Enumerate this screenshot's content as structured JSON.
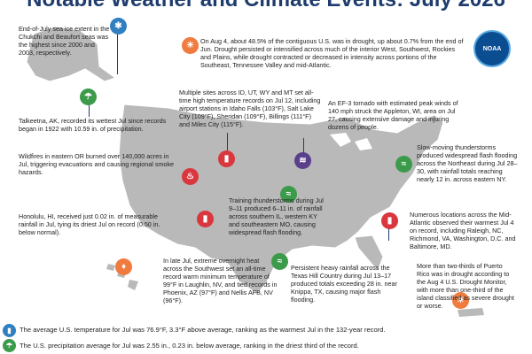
{
  "title": "Notable Weather and Climate Events: July 2026",
  "logo_text": "NOAA",
  "colors": {
    "title": "#1f3c6e",
    "map": "#b9b9b9",
    "blue": "#2f7fc1",
    "green": "#3c9b4a",
    "red": "#d9363e",
    "orange": "#f07b3f",
    "purple": "#5a3f8a"
  },
  "events": {
    "sea_ice": "End-of-July sea ice extent in the Chukchi and Beaufort seas was the highest since 2000 and 2003, respectively.",
    "drought": "On Aug 4, about 48.5% of the contiguous U.S. was in drought, up about 0.7% from the end of Jun. Drought persisted or intensified across much of the interior West, Southwest, Rockies and Plains, while drought contracted or decreased in intensity across portions of the Southeast, Tennessee Valley and mid-Atlantic.",
    "talkeetna": "Talkeetna, AK, recorded its wettest Jul since records began in 1922 with 10.59 in. of precipitation.",
    "mountain_west": "Multiple sites across ID, UT, WY and MT set all-time high temperature records on Jul 12, including airport stations in Idaho Falls (103°F), Salt Lake City (109°F), Sheridan (109°F), Billings (111°F) and Miles City (115°F).",
    "tornado": "An EF-3 tornado with estimated peak winds of 140 mph struck the Appleton, WI, area on Jul 27, causing extensive damage and injuring dozens of people.",
    "wildfire": "Wildfires in eastern OR burned over 140,000 acres in Jul, triggering evacuations and causing regional smoke hazards.",
    "training_storms": "Training thunderstorms during Jul 9–11 produced 6–11 in. of rainfall across southern IL, western KY and southeastern MO, causing widespread flash flooding.",
    "northeast_flood": "Slow-moving thunderstorms produced widespread flash flooding across the Northeast during Jul 28–30, with rainfall totals reaching nearly 12 in. across eastern NY.",
    "honolulu": "Honolulu, HI, received just 0.02 in. of measurable rainfall in Jul, tying its driest Jul on record (0.50 in. below normal).",
    "southwest_heat": "In late Jul, extreme overnight heat across the Southwest set an all-time record warm minimum temperature of 99°F in Laughlin, NV, and tied records in Phoenix, AZ (97°F) and Nellis AFB, NV (96°F).",
    "texas_rain": "Persistent heavy rainfall across the Texas Hill Country during Jul 13–17 produced totals exceeding 28 in. near Knippa, TX, causing major flash flooding.",
    "midatlantic_heat": "Numerous locations across the Mid-Atlantic observed their warmest Jul 4 on record, including Raleigh, NC, Richmond, VA, Washington, D.C. and Baltimore, MD.",
    "puerto_rico": "More than two-thirds of Puerto Rico was in drought according to the Aug 4 U.S. Drought Monitor, with more than one-third of the island classified as severe drought or worse."
  },
  "footer": {
    "temperature": "The average U.S. temperature for Jul was 76.9°F, 3.3°F above average, ranking as the warmest Jul in the 132-year record.",
    "precipitation": "The U.S. precipitation average for Jul was 2.55 in., 0.23 in. below average, ranking in the driest third of the record."
  },
  "icons": {
    "sea_ice": "snowflake-icon",
    "drought": "sun-icon",
    "talkeetna": "rain-icon",
    "wildfire": "fire-icon",
    "heat": "thermometer-icon",
    "tornado": "tornado-icon",
    "flood": "flood-icon"
  }
}
